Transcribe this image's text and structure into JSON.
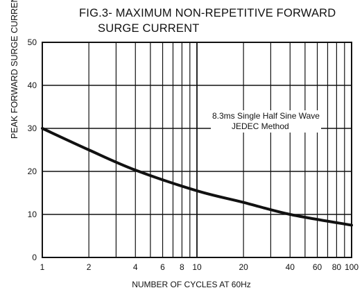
{
  "chart_data": {
    "type": "line",
    "title_line1": "FIG.3- MAXIMUM NON-REPETITIVE FORWARD",
    "title_line2": "SURGE CURRENT",
    "xlabel": "NUMBER OF CYCLES AT 60Hz",
    "ylabel": "PEAK FORWARD SURGE CURRENT, (A)",
    "xscale": "log",
    "xlim": [
      1,
      100
    ],
    "ylim": [
      0,
      50
    ],
    "x_ticks": [
      1,
      2,
      4,
      6,
      8,
      10,
      20,
      40,
      60,
      80,
      100
    ],
    "x_gridlines": [
      1,
      2,
      3,
      4,
      5,
      6,
      7,
      8,
      9,
      10,
      20,
      30,
      40,
      50,
      60,
      70,
      80,
      90,
      100
    ],
    "y_ticks": [
      0,
      10,
      20,
      30,
      40,
      50
    ],
    "grid": true,
    "annotation_line1": "8.3ms Single Half Sine Wave",
    "annotation_line2": "JEDEC Method",
    "series": [
      {
        "x": [
          1,
          2,
          4,
          10,
          20,
          40,
          100
        ],
        "y": [
          30,
          25,
          20.3,
          15.5,
          12.8,
          10,
          7.5
        ]
      }
    ]
  },
  "colors": {
    "ink": "#111111",
    "background": "#ffffff"
  }
}
